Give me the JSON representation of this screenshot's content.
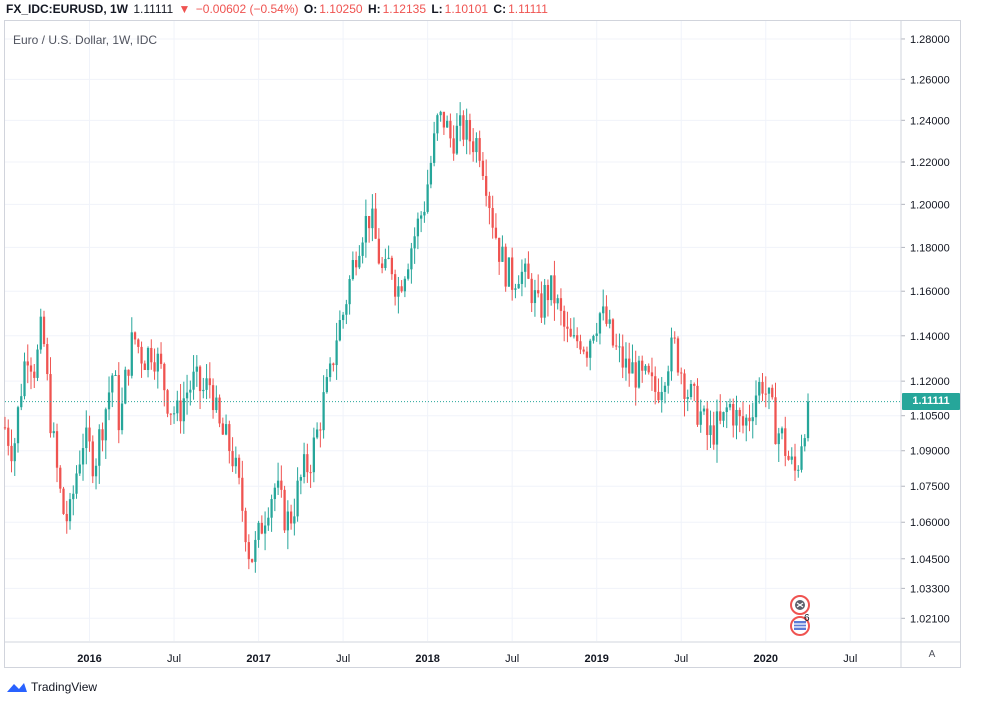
{
  "header": {
    "symbol": "FX_IDC:EURUSD, 1W",
    "last": "1.11111",
    "arrow": "▼",
    "change": "−0.00602 (−0.54%)",
    "o_label": "O:",
    "o_value": "1.10250",
    "h_label": "H:",
    "h_value": "1.12135",
    "l_label": "L:",
    "l_value": "1.10101",
    "c_label": "C:",
    "c_value": "1.11111"
  },
  "chart_title": "Euro / U.S. Dollar, 1W, IDC",
  "last_price_label": "1.11111",
  "axis_mode": "A",
  "branding": "TradingView",
  "events_badge": "6",
  "colors": {
    "up": "#26a69a",
    "down": "#ef5350",
    "grid": "#f0f3fa",
    "axis_text": "#131722"
  },
  "chart_data": {
    "type": "candlestick",
    "title": "Euro / U.S. Dollar, 1W, IDC",
    "price_ticks": [
      "1.28000",
      "1.26000",
      "1.24000",
      "1.22000",
      "1.20000",
      "1.18000",
      "1.16000",
      "1.14000",
      "1.12000",
      "1.10500",
      "1.09000",
      "1.07500",
      "1.06000",
      "1.04500",
      "1.03300",
      "1.02100"
    ],
    "time_ticks": [
      "2016",
      "Jul",
      "2017",
      "Jul",
      "2018",
      "Jul",
      "2019",
      "Jul",
      "2020",
      "Jul"
    ],
    "last_price": 1.11111,
    "ylim": [
      1.012,
      1.289
    ],
    "xlim": [
      2015.5,
      2020.8
    ],
    "price_scale": "log",
    "grid": true,
    "keypoints": [
      [
        2015.5,
        1.1
      ],
      [
        2015.55,
        1.09
      ],
      [
        2015.6,
        1.12
      ],
      [
        2015.63,
        1.135
      ],
      [
        2015.68,
        1.125
      ],
      [
        2015.72,
        1.145
      ],
      [
        2015.76,
        1.11
      ],
      [
        2015.8,
        1.085
      ],
      [
        2015.84,
        1.065
      ],
      [
        2015.88,
        1.06
      ],
      [
        2015.92,
        1.08
      ],
      [
        2015.96,
        1.095
      ],
      [
        2016.0,
        1.09
      ],
      [
        2016.03,
        1.085
      ],
      [
        2016.07,
        1.1
      ],
      [
        2016.1,
        1.11
      ],
      [
        2016.14,
        1.125
      ],
      [
        2016.18,
        1.1
      ],
      [
        2016.22,
        1.125
      ],
      [
        2016.26,
        1.14
      ],
      [
        2016.32,
        1.13
      ],
      [
        2016.37,
        1.135
      ],
      [
        2016.42,
        1.125
      ],
      [
        2016.47,
        1.11
      ],
      [
        2016.52,
        1.105
      ],
      [
        2016.57,
        1.115
      ],
      [
        2016.62,
        1.12
      ],
      [
        2016.67,
        1.115
      ],
      [
        2016.72,
        1.12
      ],
      [
        2016.76,
        1.1
      ],
      [
        2016.8,
        1.095
      ],
      [
        2016.84,
        1.09
      ],
      [
        2016.88,
        1.075
      ],
      [
        2016.92,
        1.06
      ],
      [
        2016.95,
        1.045
      ],
      [
        2016.99,
        1.05
      ],
      [
        2017.02,
        1.06
      ],
      [
        2017.06,
        1.07
      ],
      [
        2017.1,
        1.075
      ],
      [
        2017.14,
        1.065
      ],
      [
        2017.18,
        1.06
      ],
      [
        2017.22,
        1.07
      ],
      [
        2017.26,
        1.08
      ],
      [
        2017.3,
        1.085
      ],
      [
        2017.34,
        1.095
      ],
      [
        2017.38,
        1.11
      ],
      [
        2017.42,
        1.12
      ],
      [
        2017.46,
        1.14
      ],
      [
        2017.5,
        1.15
      ],
      [
        2017.54,
        1.165
      ],
      [
        2017.58,
        1.18
      ],
      [
        2017.62,
        1.19
      ],
      [
        2017.66,
        1.195
      ],
      [
        2017.7,
        1.18
      ],
      [
        2017.74,
        1.165
      ],
      [
        2017.78,
        1.175
      ],
      [
        2017.82,
        1.16
      ],
      [
        2017.86,
        1.17
      ],
      [
        2017.9,
        1.18
      ],
      [
        2017.94,
        1.19
      ],
      [
        2017.98,
        1.2
      ],
      [
        2018.02,
        1.22
      ],
      [
        2018.06,
        1.24
      ],
      [
        2018.1,
        1.24
      ],
      [
        2018.14,
        1.23
      ],
      [
        2018.18,
        1.235
      ],
      [
        2018.22,
        1.235
      ],
      [
        2018.26,
        1.23
      ],
      [
        2018.3,
        1.23
      ],
      [
        2018.34,
        1.215
      ],
      [
        2018.38,
        1.195
      ],
      [
        2018.42,
        1.18
      ],
      [
        2018.46,
        1.17
      ],
      [
        2018.5,
        1.165
      ],
      [
        2018.54,
        1.17
      ],
      [
        2018.58,
        1.165
      ],
      [
        2018.62,
        1.16
      ],
      [
        2018.66,
        1.15
      ],
      [
        2018.7,
        1.16
      ],
      [
        2018.74,
        1.16
      ],
      [
        2018.78,
        1.15
      ],
      [
        2018.82,
        1.14
      ],
      [
        2018.86,
        1.135
      ],
      [
        2018.9,
        1.14
      ],
      [
        2018.94,
        1.135
      ],
      [
        2018.98,
        1.145
      ],
      [
        2019.02,
        1.15
      ],
      [
        2019.06,
        1.145
      ],
      [
        2019.1,
        1.135
      ],
      [
        2019.14,
        1.13
      ],
      [
        2019.18,
        1.125
      ],
      [
        2019.22,
        1.125
      ],
      [
        2019.26,
        1.12
      ],
      [
        2019.3,
        1.12
      ],
      [
        2019.34,
        1.115
      ],
      [
        2019.38,
        1.12
      ],
      [
        2019.42,
        1.13
      ],
      [
        2019.46,
        1.135
      ],
      [
        2019.5,
        1.125
      ],
      [
        2019.54,
        1.115
      ],
      [
        2019.58,
        1.11
      ],
      [
        2019.62,
        1.105
      ],
      [
        2019.66,
        1.095
      ],
      [
        2019.7,
        1.1
      ],
      [
        2019.74,
        1.1
      ],
      [
        2019.78,
        1.11
      ],
      [
        2019.82,
        1.105
      ],
      [
        2019.86,
        1.1
      ],
      [
        2019.9,
        1.105
      ],
      [
        2019.94,
        1.115
      ],
      [
        2019.98,
        1.12
      ],
      [
        2020.02,
        1.11
      ],
      [
        2020.06,
        1.1
      ],
      [
        2020.1,
        1.095
      ],
      [
        2020.14,
        1.085
      ],
      [
        2020.18,
        1.08
      ],
      [
        2020.22,
        1.1
      ],
      [
        2020.26,
        1.111
      ]
    ]
  }
}
